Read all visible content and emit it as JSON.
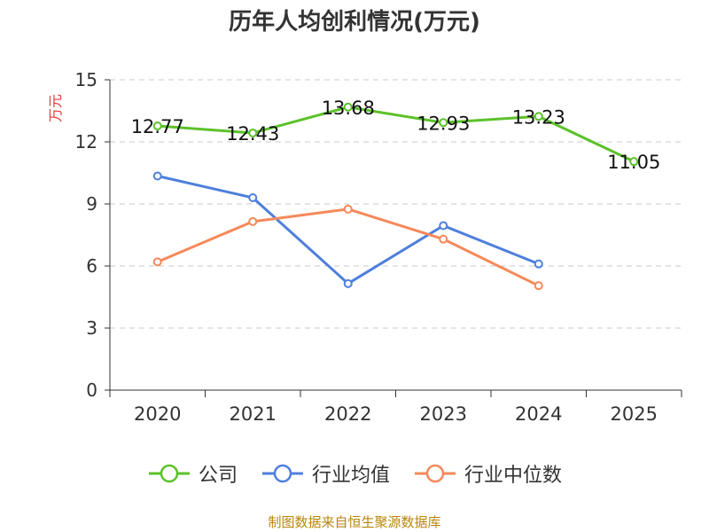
{
  "chart_data": {
    "type": "line",
    "title": "历年人均创利情况(万元)",
    "ylabel": "万元",
    "categories": [
      "2020",
      "2021",
      "2022",
      "2023",
      "2024",
      "2025"
    ],
    "ylim": [
      0,
      15
    ],
    "yticks": [
      0,
      3,
      6,
      9,
      12,
      15
    ],
    "grid": true,
    "legend_position": "bottom",
    "series": [
      {
        "name": "公司",
        "color": "#5cc12a",
        "values": [
          12.77,
          12.43,
          13.68,
          12.93,
          13.23,
          11.05
        ],
        "labels": [
          "12.77",
          "12.43",
          "13.68",
          "12.93",
          "13.23",
          "11.05"
        ]
      },
      {
        "name": "行业均值",
        "color": "#4e7fdc",
        "values": [
          10.35,
          9.3,
          5.15,
          7.95,
          6.1,
          null
        ]
      },
      {
        "name": "行业中位数",
        "color": "#f5895a",
        "values": [
          6.2,
          8.15,
          8.75,
          7.3,
          5.05,
          null
        ]
      }
    ]
  },
  "source": "制图数据来自恒生聚源数据库"
}
